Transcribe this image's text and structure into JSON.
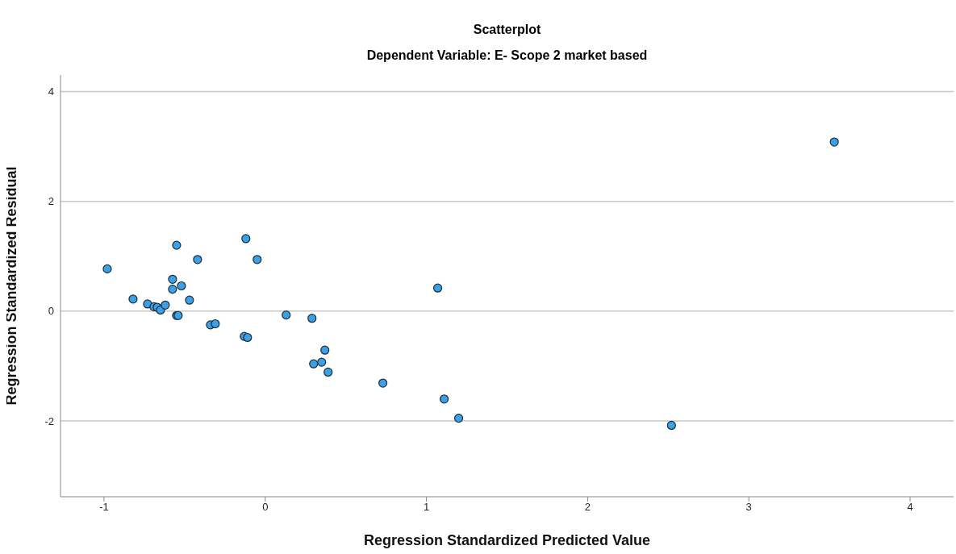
{
  "chart_data": {
    "type": "scatter",
    "title": "Scatterplot",
    "subtitle": "Dependent Variable: E- Scope 2 market based",
    "xlabel": "Regression Standardized Predicted Value",
    "ylabel": "Regression Standardized Residual",
    "x": [
      -0.98,
      -0.82,
      -0.73,
      -0.69,
      -0.67,
      -0.65,
      -0.62,
      -0.575,
      -0.575,
      -0.55,
      -0.55,
      -0.54,
      -0.52,
      -0.47,
      -0.42,
      -0.34,
      -0.31,
      -0.13,
      -0.11,
      -0.12,
      -0.05,
      0.13,
      0.29,
      0.37,
      0.3,
      0.35,
      0.39,
      0.73,
      1.07,
      1.11,
      1.2,
      2.52,
      3.53
    ],
    "values": [
      0.77,
      0.22,
      0.13,
      0.08,
      0.07,
      0.02,
      0.11,
      0.58,
      0.4,
      1.2,
      -0.08,
      -0.08,
      0.46,
      0.2,
      0.94,
      -0.25,
      -0.23,
      -0.46,
      -0.48,
      1.32,
      0.94,
      -0.07,
      -0.13,
      -0.71,
      -0.96,
      -0.93,
      -1.11,
      -1.31,
      0.42,
      -1.6,
      -1.95,
      -2.08,
      3.08
    ],
    "color": "#3aa0e8",
    "xlim": [
      -1.27,
      4.27
    ],
    "xticks": [
      -1,
      0,
      1,
      2,
      3,
      4
    ],
    "ylim": [
      -3.38,
      4.3
    ],
    "yticks": [
      -2,
      0,
      2,
      4
    ],
    "grid": "y",
    "marker": "circle"
  }
}
